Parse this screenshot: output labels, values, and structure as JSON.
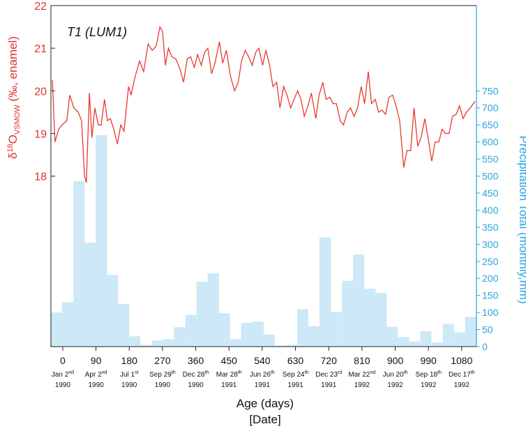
{
  "chart_data": {
    "type": "line",
    "annotation": "T1 (LUM1)",
    "ylabel": {
      "prefix": "δ",
      "sup": "18",
      "main": "O",
      "sub": "VSMOW",
      "suffix": " (‰, enamel)"
    },
    "y2label": "Precipitation Total (monthly,mm)",
    "xlabel": "Age (days)",
    "xlabel2": "[Date]",
    "xlim": [
      -32,
      1120
    ],
    "xticks": [
      0,
      90,
      180,
      270,
      360,
      450,
      540,
      630,
      720,
      810,
      900,
      990,
      1080
    ],
    "date_labels": [
      {
        "day": "Jan 2",
        "ordinal": "nd",
        "year": "1990"
      },
      {
        "day": "Apr 2",
        "ordinal": "nd",
        "year": "1990"
      },
      {
        "day": "Jul 1",
        "ordinal": "st",
        "year": "1990"
      },
      {
        "day": "Sep 29",
        "ordinal": "th",
        "year": "1990"
      },
      {
        "day": "Dec 28",
        "ordinal": "th",
        "year": "1990"
      },
      {
        "day": "Mar 28",
        "ordinal": "th",
        "year": "1991"
      },
      {
        "day": "Jun 26",
        "ordinal": "th",
        "year": "1991"
      },
      {
        "day": "Sep 24",
        "ordinal": "th",
        "year": "1991"
      },
      {
        "day": "Dec 23",
        "ordinal": "rd",
        "year": "1991"
      },
      {
        "day": "Mar 22",
        "ordinal": "nd",
        "year": "1992"
      },
      {
        "day": "Jun 20",
        "ordinal": "th",
        "year": "1992"
      },
      {
        "day": "Sep 18",
        "ordinal": "th",
        "year": "1992"
      },
      {
        "day": "Dec 17",
        "ordinal": "th",
        "year": "1992"
      }
    ],
    "ylim": [
      14,
      22
    ],
    "yticks": [
      18,
      19,
      20,
      21,
      22
    ],
    "y2lim": [
      0,
      1000
    ],
    "y2ticks": [
      0,
      50,
      100,
      150,
      200,
      250,
      300,
      350,
      400,
      450,
      500,
      550,
      600,
      650,
      700,
      750
    ],
    "series": [
      {
        "type": "line",
        "color": "#e8392f",
        "x": [
          -28,
          -21,
          -11,
          -2,
          11,
          19,
          30,
          42,
          51,
          59,
          64,
          72,
          79,
          87,
          96,
          104,
          113,
          121,
          129,
          138,
          148,
          157,
          166,
          178,
          185,
          195,
          208,
          219,
          231,
          242,
          253,
          263,
          270,
          278,
          286,
          295,
          306,
          318,
          327,
          337,
          346,
          356,
          365,
          375,
          384,
          393,
          403,
          412,
          424,
          433,
          443,
          454,
          465,
          475,
          484,
          494,
          503,
          513,
          522,
          531,
          541,
          550,
          560,
          569,
          579,
          588,
          598,
          607,
          617,
          626,
          636,
          645,
          654,
          664,
          673,
          685,
          694,
          704,
          713,
          723,
          732,
          741,
          751,
          760,
          770,
          779,
          789,
          798,
          808,
          817,
          827,
          836,
          846,
          855,
          864,
          874,
          883,
          893,
          902,
          912,
          923,
          932,
          942,
          951,
          961,
          970,
          980,
          989,
          999,
          1008,
          1018,
          1027,
          1036,
          1046,
          1055,
          1065,
          1074,
          1084,
          1093,
          1103,
          1116
        ],
        "values": [
          20.25,
          18.8,
          19.1,
          19.2,
          19.3,
          19.9,
          19.6,
          19.5,
          19.3,
          18.0,
          17.85,
          19.95,
          18.9,
          19.6,
          19.2,
          19.2,
          19.8,
          19.3,
          19.35,
          19.1,
          18.75,
          19.2,
          19.05,
          20.1,
          19.9,
          20.3,
          20.7,
          20.45,
          21.1,
          20.95,
          21.05,
          21.5,
          21.4,
          20.6,
          21.0,
          20.8,
          20.75,
          20.5,
          20.2,
          20.75,
          20.8,
          20.55,
          20.85,
          20.6,
          20.9,
          21.0,
          20.4,
          20.65,
          21.15,
          20.65,
          20.95,
          20.35,
          20.0,
          20.2,
          20.7,
          20.95,
          20.8,
          20.6,
          20.9,
          21.0,
          20.6,
          20.95,
          20.6,
          20.1,
          20.2,
          19.6,
          20.1,
          19.9,
          19.6,
          19.8,
          20.0,
          19.8,
          19.4,
          19.65,
          19.95,
          19.35,
          19.9,
          20.2,
          19.8,
          19.85,
          19.7,
          19.7,
          19.3,
          19.2,
          19.5,
          19.6,
          19.4,
          19.6,
          20.1,
          19.7,
          20.45,
          19.7,
          19.8,
          19.5,
          19.55,
          19.45,
          19.85,
          19.9,
          19.65,
          19.3,
          18.2,
          18.6,
          18.6,
          19.6,
          18.7,
          18.9,
          19.35,
          18.9,
          18.35,
          18.8,
          18.8,
          19.1,
          19.0,
          19.0,
          19.4,
          19.45,
          19.65,
          19.35,
          19.5,
          19.6,
          19.75
        ]
      },
      {
        "type": "bar",
        "axis": "y2",
        "color": "#cde8f7",
        "bins": [
          -32,
          -2,
          29,
          59,
          89,
          120,
          150,
          180,
          210,
          241,
          271,
          301,
          332,
          362,
          392,
          423,
          453,
          483,
          513,
          544,
          574,
          604,
          635,
          665,
          695,
          726,
          756,
          786,
          816,
          847,
          877,
          907,
          938,
          968,
          998,
          1029,
          1059,
          1089,
          1120
        ],
        "values": [
          100,
          130,
          485,
          305,
          620,
          210,
          125,
          30,
          5,
          18,
          22,
          57,
          93,
          190,
          215,
          98,
          22,
          70,
          73,
          35,
          3,
          5,
          110,
          60,
          320,
          102,
          193,
          270,
          170,
          158,
          58,
          28,
          15,
          45,
          12,
          67,
          42,
          87
        ]
      }
    ]
  }
}
